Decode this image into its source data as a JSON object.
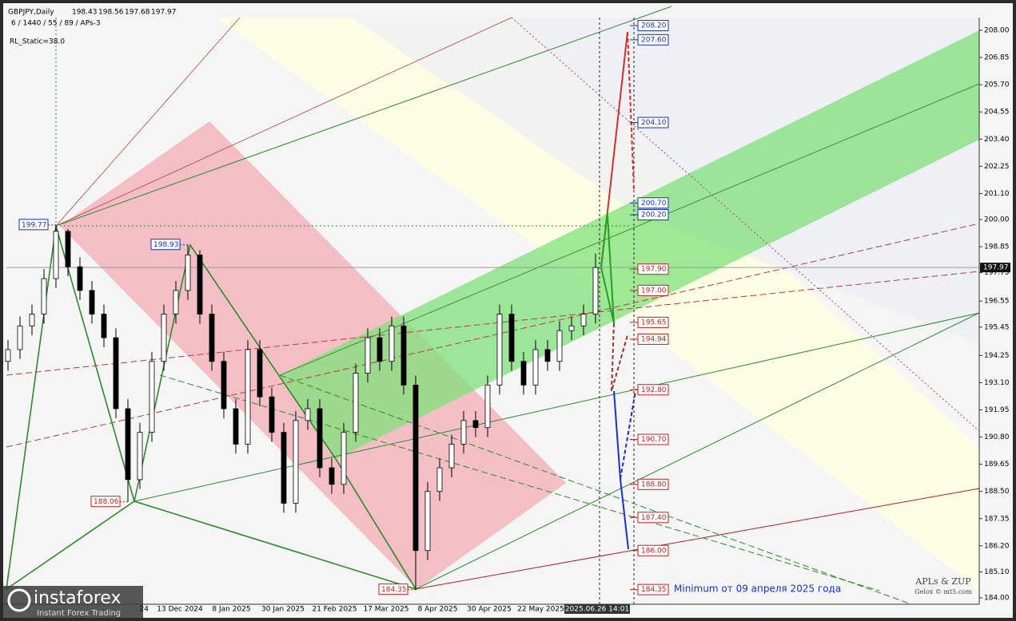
{
  "chart_data": {
    "type": "candlestick",
    "symbol": "GBPJPY,Daily",
    "header_prices": [
      "198.43",
      "198.56",
      "197.68",
      "197.97"
    ],
    "indicator": "6 / 1440 / 55 / 89 / APs-3",
    "setting": "RL_Static=38.0",
    "open": [
      194.0,
      194.5,
      195.5,
      196,
      197.5,
      199.5,
      198,
      197,
      196,
      195,
      192,
      189,
      191,
      194,
      196,
      197,
      198.5,
      196,
      194,
      192,
      190.5,
      194.5,
      192.5,
      191,
      188,
      191.5,
      192,
      189.5,
      188.8,
      191,
      193.5,
      195,
      194,
      195.5,
      193,
      186,
      188.5,
      189.5,
      190.5,
      191.5,
      191.2,
      193,
      196,
      194,
      193,
      194.5,
      194,
      195.3,
      195.5,
      196
    ],
    "high": [
      194.9,
      195.9,
      196.4,
      197.9,
      199.77,
      199.6,
      198.4,
      197.4,
      196.4,
      195.4,
      192.4,
      191.4,
      194.4,
      196.4,
      197.4,
      198.93,
      198.7,
      196.4,
      194.4,
      192.4,
      194.9,
      194.9,
      192.9,
      191.4,
      191.9,
      192.4,
      192.4,
      189.9,
      191.4,
      193.9,
      195.4,
      195.4,
      195.9,
      195.9,
      193.4,
      188.9,
      189.9,
      190.9,
      191.9,
      191.9,
      193.4,
      196.4,
      196.4,
      194.4,
      194.9,
      194.9,
      195.7,
      195.9,
      196.4,
      198.56
    ],
    "low": [
      193.6,
      194.1,
      195.1,
      195.6,
      197.1,
      197.6,
      196.6,
      195.6,
      194.6,
      191.6,
      188.06,
      188.6,
      190.6,
      193.6,
      195.6,
      196.6,
      195.6,
      193.6,
      191.6,
      190.1,
      190.1,
      192.1,
      190.6,
      187.6,
      187.6,
      191.1,
      189.1,
      188.4,
      188.4,
      190.6,
      193.1,
      193.6,
      193.6,
      192.6,
      184.35,
      185.6,
      188.1,
      189.1,
      190.1,
      190.8,
      190.8,
      192.6,
      193.6,
      192.6,
      192.6,
      193.6,
      193.6,
      194.9,
      195.1,
      195.6
    ],
    "close": [
      194.5,
      195.5,
      196,
      197.5,
      199.5,
      198,
      197,
      196,
      195,
      192,
      189,
      191,
      194,
      196,
      197,
      198.5,
      196,
      194,
      192,
      190.5,
      194.5,
      192.5,
      191,
      188,
      191.5,
      192,
      189.5,
      188.8,
      191,
      193.5,
      195,
      194,
      195.5,
      193,
      186,
      188.5,
      189.5,
      190.5,
      191.5,
      191.2,
      193,
      196,
      194,
      193,
      194.5,
      194,
      195.3,
      195.5,
      196,
      197.97
    ],
    "x_labels": [
      "24",
      "13 Dec 2024",
      "8 Jan 2025",
      "30 Jan 2025",
      "21 Feb 2025",
      "17 Mar 2025",
      "8 Apr 2025",
      "30 Apr 2025",
      "22 May 2025",
      "2025.06.26 14:01"
    ],
    "ylim": [
      183.73,
      208.54
    ],
    "yticks": [
      {
        "value": 208,
        "label": "208.00"
      },
      {
        "value": 206.85,
        "label": "206.85"
      },
      {
        "value": 205.7,
        "label": "205.70"
      },
      {
        "value": 204.55,
        "label": "204.55"
      },
      {
        "value": 203.4,
        "label": "203.40"
      },
      {
        "value": 202.25,
        "label": "202.25"
      },
      {
        "value": 201.1,
        "label": "201.10"
      },
      {
        "value": 200,
        "label": "200.00"
      },
      {
        "value": 198.85,
        "label": "198.85"
      },
      {
        "value": 197.75,
        "label": "197.75"
      },
      {
        "value": 196.55,
        "label": "196.55"
      },
      {
        "value": 195.45,
        "label": "195.45"
      },
      {
        "value": 194.25,
        "label": "194.25"
      },
      {
        "value": 193.1,
        "label": "193.10"
      },
      {
        "value": 191.95,
        "label": "191.95"
      },
      {
        "value": 190.8,
        "label": "190.80"
      },
      {
        "value": 189.65,
        "label": "189.65"
      },
      {
        "value": 188.5,
        "label": "188.50"
      },
      {
        "value": 187.35,
        "label": "187.35"
      },
      {
        "value": 186.2,
        "label": "186.20"
      },
      {
        "value": 185.1,
        "label": "185.10"
      },
      {
        "value": 184,
        "label": "184.00"
      }
    ],
    "pivots": [
      {
        "value": 199.77,
        "label": "199.77",
        "color": "#1a2fb0"
      },
      {
        "value": 198.93,
        "label": "198.93",
        "color": "#1a2fb0"
      },
      {
        "value": 188.06,
        "label": "188.06",
        "color": "#c02020"
      },
      {
        "value": 184.35,
        "label": "184.35",
        "color": "#c02020"
      }
    ],
    "projections": [
      {
        "value": 208.2,
        "label": "208.20",
        "color": "#1a2fb0"
      },
      {
        "value": 207.6,
        "label": "207.60",
        "color": "#1a2fb0"
      },
      {
        "value": 204.1,
        "label": "204.10",
        "color": "#1a2fb0"
      },
      {
        "value": 200.7,
        "label": "200.70",
        "color": "#1a2fb0"
      },
      {
        "value": 200.2,
        "label": "200.20",
        "color": "#1a2fb0"
      },
      {
        "value": 197.9,
        "label": "197.90",
        "color": "#c02020"
      },
      {
        "value": 197,
        "label": "197.00",
        "color": "#c02020"
      },
      {
        "value": 195.65,
        "label": "195.65",
        "color": "#c02020"
      },
      {
        "value": 194.94,
        "label": "194.94",
        "color": "#c02020"
      },
      {
        "value": 192.8,
        "label": "192.80",
        "color": "#c02020"
      },
      {
        "value": 190.7,
        "label": "190.70",
        "color": "#c02020"
      },
      {
        "value": 188.8,
        "label": "188.80",
        "color": "#c02020"
      },
      {
        "value": 187.4,
        "label": "187.40",
        "color": "#c02020"
      },
      {
        "value": 186,
        "label": "186.00",
        "color": "#c02020"
      },
      {
        "value": 184.35,
        "label": "184.35",
        "color": "#c02020"
      }
    ],
    "last_price": {
      "value": 197.97,
      "label": "197.97"
    },
    "note": "Minimum от 09 апреля 2025 года",
    "brand": "APLs & ZUP",
    "credit": "Gelox © mt5.com",
    "watermark": "instaforex",
    "watermark_sub": "Instant Forex Trading"
  }
}
